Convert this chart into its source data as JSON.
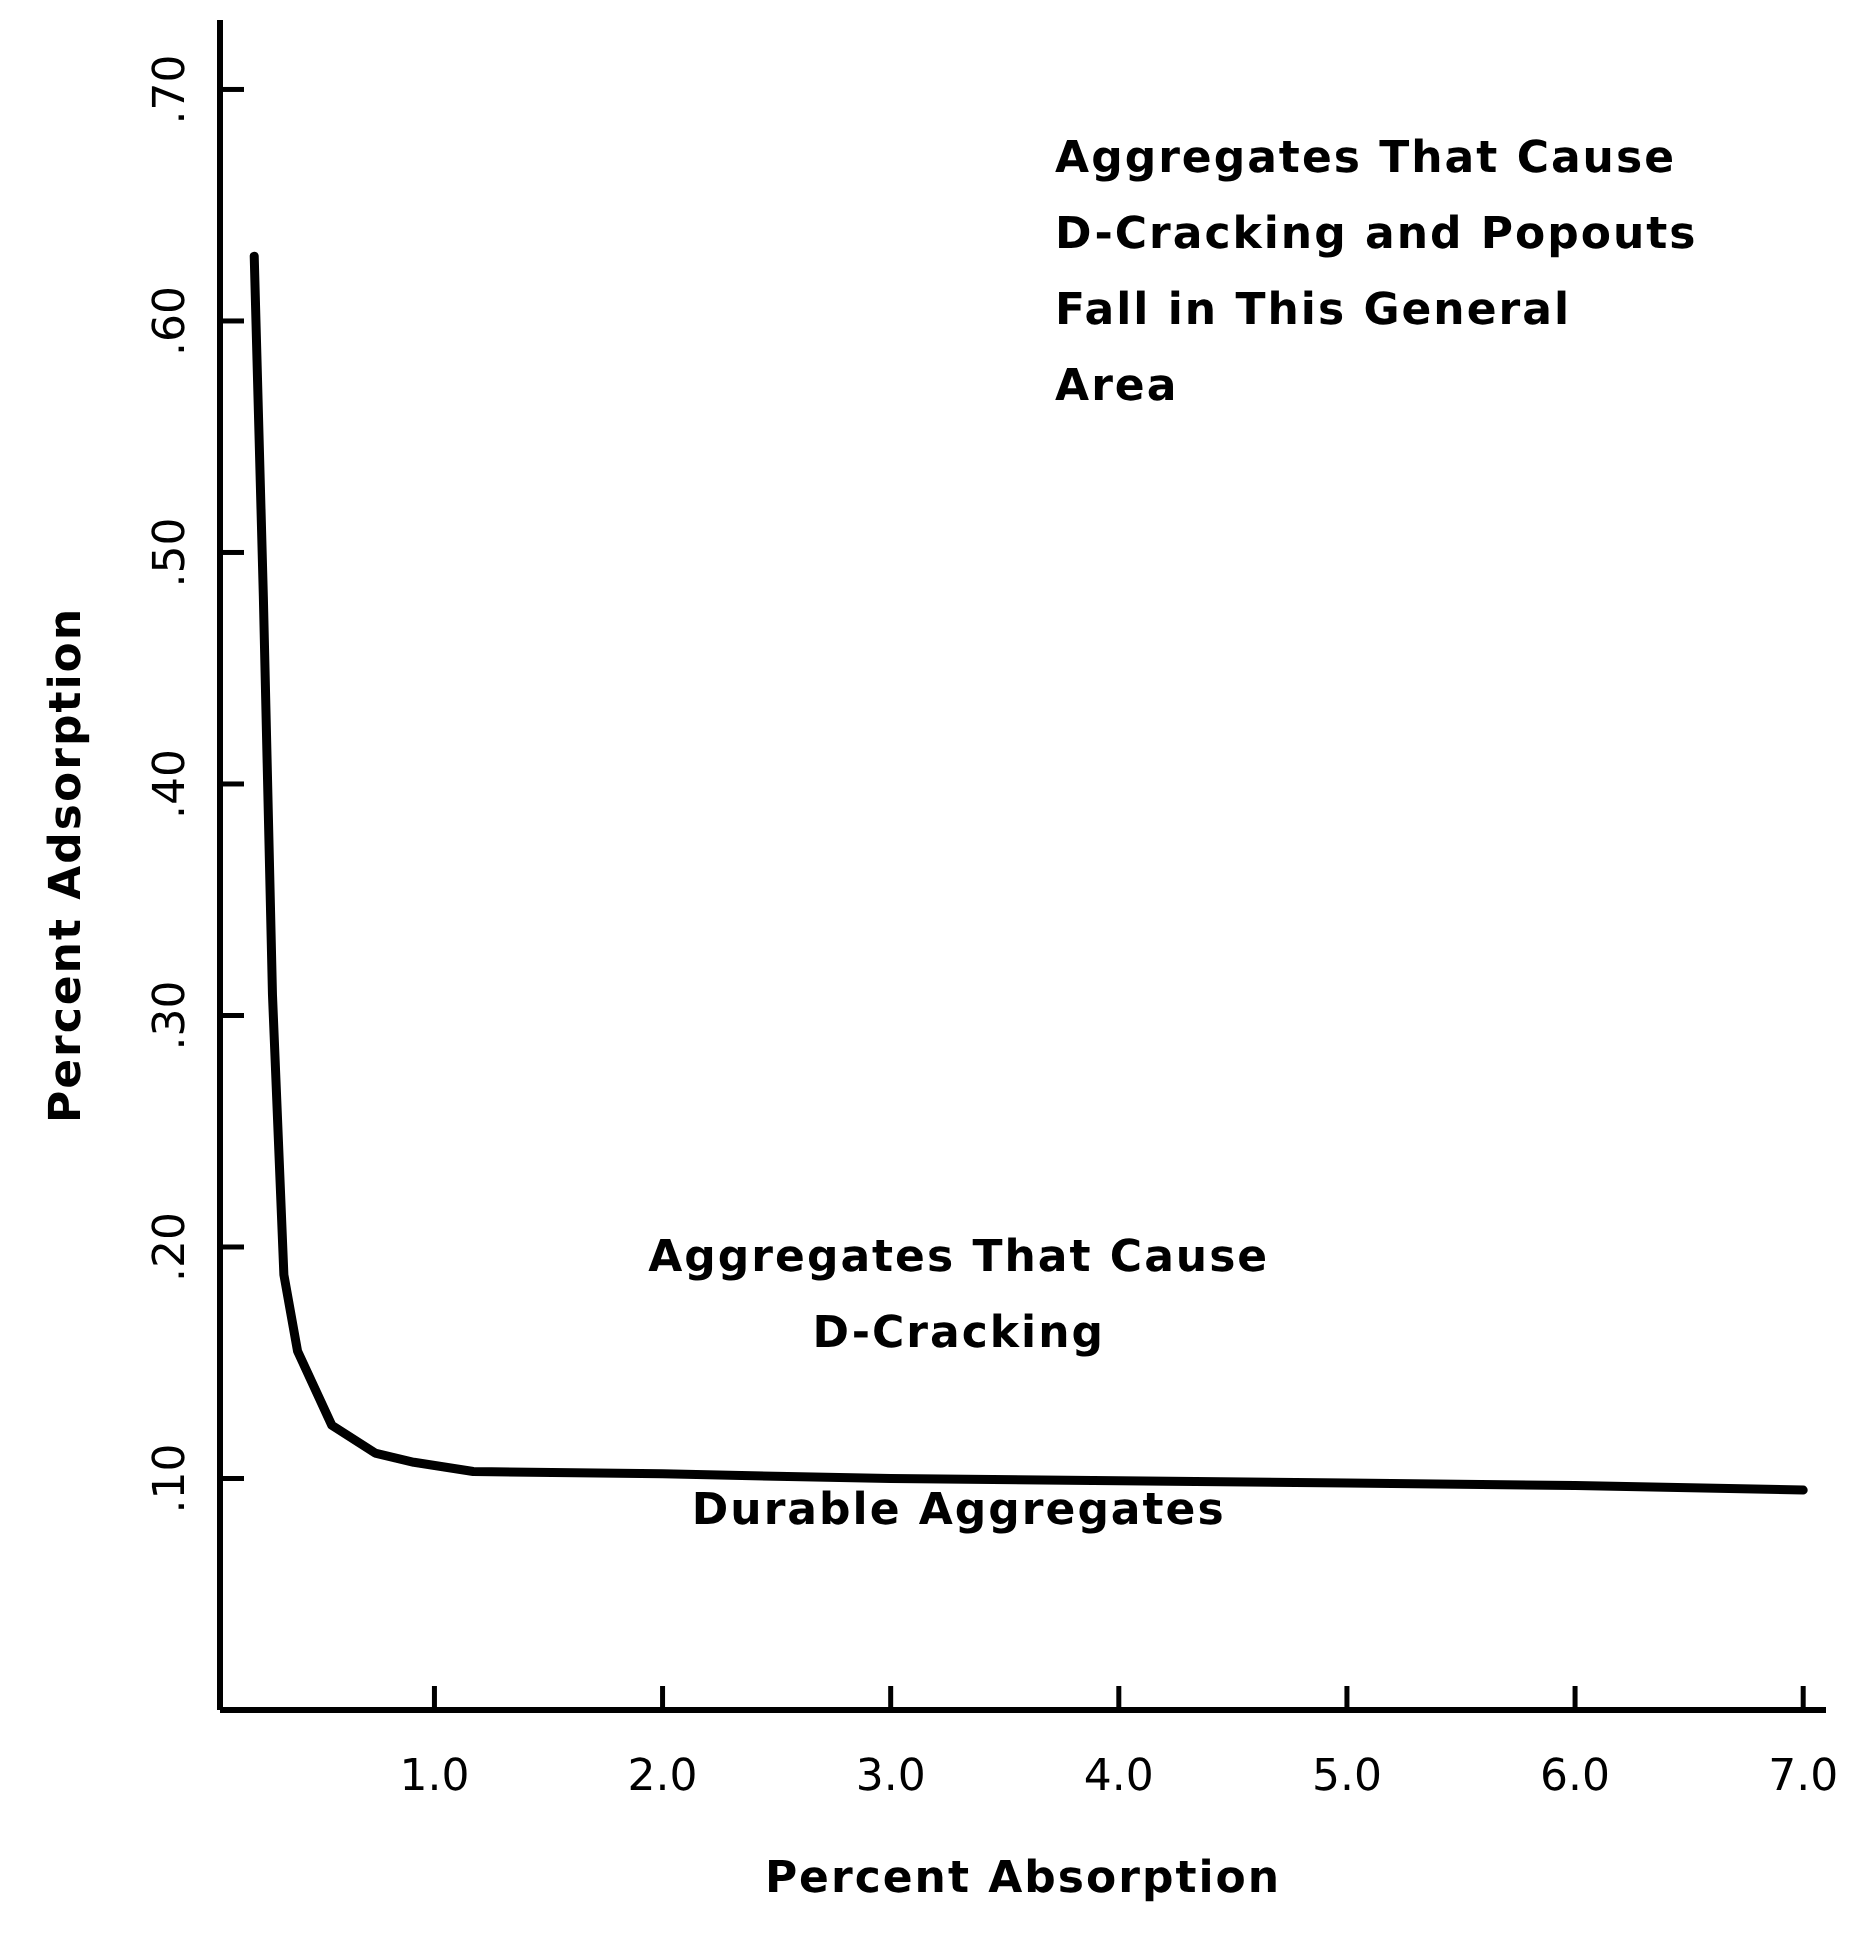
{
  "chart_data": {
    "type": "line",
    "xlabel": "Percent  Absorption",
    "ylabel": "Percent  Adsorption",
    "xlim": [
      0.06,
      7.1
    ],
    "ylim": [
      0,
      0.73
    ],
    "xticks": [
      {
        "value": 1,
        "label": "1.0"
      },
      {
        "value": 2,
        "label": "2.0"
      },
      {
        "value": 3,
        "label": "3.0"
      },
      {
        "value": 4,
        "label": "4.0"
      },
      {
        "value": 5,
        "label": "5.0"
      },
      {
        "value": 6,
        "label": "6.0"
      },
      {
        "value": 7,
        "label": "7.0"
      }
    ],
    "yticks": [
      {
        "value": 0.1,
        "label": ".10"
      },
      {
        "value": 0.2,
        "label": ".20"
      },
      {
        "value": 0.3,
        "label": ".30"
      },
      {
        "value": 0.4,
        "label": ".40"
      },
      {
        "value": 0.5,
        "label": ".50"
      },
      {
        "value": 0.6,
        "label": ".60"
      },
      {
        "value": 0.7,
        "label": ".70"
      }
    ],
    "series": [
      {
        "color": "#000000",
        "x": [
          0.21,
          0.25,
          0.29,
          0.34,
          0.4,
          0.55,
          0.74,
          0.91,
          1.17,
          2.0,
          3.0,
          4.0,
          5.0,
          6.0,
          7.0
        ],
        "values": [
          0.628,
          0.481,
          0.309,
          0.188,
          0.155,
          0.123,
          0.111,
          0.107,
          0.103,
          0.102,
          0.1,
          0.099,
          0.098,
          0.097,
          0.095
        ]
      }
    ],
    "marker": "none",
    "line_style": "solid",
    "grid": false,
    "annotations": [
      "Aggregates That Cause\nD-Cracking and Popouts\nFall in This General\nArea",
      "Aggregates That Cause\nD-Cracking",
      "Durable Aggregates"
    ]
  }
}
